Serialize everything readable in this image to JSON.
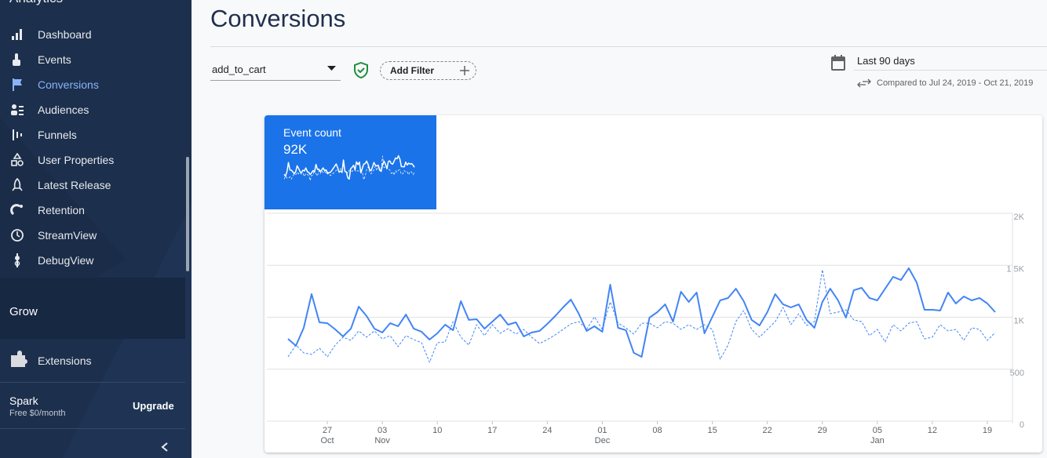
{
  "sidebar": {
    "product": "Analytics",
    "items": [
      "Dashboard",
      "Events",
      "Conversions",
      "Audiences",
      "Funnels",
      "User Properties",
      "Latest Release",
      "Retention",
      "StreamView",
      "DebugView"
    ],
    "active_item": 2,
    "section": "Grow",
    "extensions": "Extensions",
    "plan": {
      "name": "Spark",
      "price": "Free $0/month",
      "action": "Upgrade"
    }
  },
  "header": {
    "title": "Conversions"
  },
  "filters": {
    "event": "add_to_cart",
    "add_filter": "Add Filter"
  },
  "date_range": {
    "label": "Last 90 days",
    "comparison": "Compared to Jul 24, 2019 - Oct 21, 2019"
  },
  "summary": {
    "label": "Event count",
    "value": "92K"
  },
  "chart_data": {
    "type": "line",
    "categories": [
      null,
      null,
      null,
      null,
      null,
      "27",
      null,
      null,
      null,
      null,
      null,
      null,
      "03",
      null,
      null,
      null,
      null,
      null,
      null,
      "10",
      null,
      null,
      null,
      null,
      null,
      null,
      "17",
      null,
      null,
      null,
      null,
      null,
      null,
      "24",
      null,
      null,
      null,
      null,
      null,
      null,
      "01",
      null,
      null,
      null,
      null,
      null,
      null,
      "08",
      null,
      null,
      null,
      null,
      null,
      null,
      "15",
      null,
      null,
      null,
      null,
      null,
      null,
      "22",
      null,
      null,
      null,
      null,
      null,
      null,
      "29",
      null,
      null,
      null,
      null,
      null,
      null,
      "05",
      null,
      null,
      null,
      null,
      null,
      null,
      "12",
      null,
      null,
      null,
      null,
      null,
      null,
      "19",
      null
    ],
    "category_months": [
      null,
      null,
      null,
      null,
      null,
      "Oct",
      null,
      null,
      null,
      null,
      null,
      null,
      "Nov",
      null,
      null,
      null,
      null,
      null,
      null,
      null,
      null,
      null,
      null,
      null,
      null,
      null,
      null,
      null,
      null,
      null,
      null,
      null,
      null,
      null,
      null,
      null,
      null,
      null,
      null,
      null,
      "Dec",
      null,
      null,
      null,
      null,
      null,
      null,
      null,
      null,
      null,
      null,
      null,
      null,
      null,
      null,
      null,
      null,
      null,
      null,
      null,
      null,
      null,
      null,
      null,
      null,
      null,
      null,
      null,
      null,
      null,
      null,
      null,
      null,
      null,
      null,
      "Jan",
      null,
      null,
      null,
      null,
      null,
      null,
      null,
      null,
      null,
      null,
      null,
      null,
      null,
      null,
      null
    ],
    "series": [
      {
        "color": "#4285f4",
        "style": "solid",
        "values": [
          792,
          725,
          898,
          1223,
          951,
          943,
          883,
          815,
          890,
          1102,
          1011,
          890,
          853,
          943,
          913,
          1026,
          890,
          860,
          785,
          845,
          928,
          875,
          1155,
          974,
          981,
          890,
          958,
          1026,
          928,
          951,
          815,
          853,
          868,
          936,
          1011,
          1094,
          1170,
          1034,
          868,
          913,
          860,
          1313,
          898,
          875,
          657,
          619,
          996,
          1049,
          1124,
          958,
          1245,
          1147,
          1238,
          845,
          1004,
          1162,
          1185,
          1275,
          1155,
          974,
          921,
          1049,
          1223,
          1124,
          1094,
          1124,
          974,
          898,
          1147,
          1275,
          1162,
          996,
          1260,
          1283,
          1185,
          1162,
          1275,
          1389,
          1358,
          1472,
          1336,
          1072,
          1072,
          1064,
          1238,
          1132,
          1200,
          1162,
          1185,
          1132,
          1049
        ]
      },
      {
        "color": "#4285f4",
        "style": "dashed",
        "values": [
          619,
          732,
          657,
          642,
          702,
          619,
          732,
          808,
          777,
          868,
          808,
          868,
          792,
          823,
          717,
          823,
          785,
          755,
          566,
          755,
          762,
          958,
          808,
          732,
          928,
          823,
          928,
          845,
          890,
          838,
          883,
          808,
          747,
          785,
          830,
          883,
          936,
          958,
          883,
          1004,
          883,
          1147,
          943,
          898,
          838,
          943,
          943,
          898,
          958,
          943,
          883,
          928,
          883,
          928,
          883,
          596,
          732,
          958,
          1064,
          883,
          808,
          883,
          958,
          1094,
          928,
          1034,
          921,
          958,
          1457,
          1034,
          1049,
          1072,
          974,
          958,
          823,
          883,
          762,
          928,
          868,
          943,
          958,
          792,
          808,
          928,
          868,
          883,
          777,
          898,
          883,
          777,
          853
        ]
      }
    ],
    "ylim": [
      0,
      2000
    ],
    "yticks": [
      0,
      500,
      {
        "value": 1000,
        "label": "1K"
      },
      {
        "value": 1500,
        "label": "1.5K"
      },
      {
        "value": 2000,
        "label": "2K"
      }
    ],
    "grid": true
  }
}
